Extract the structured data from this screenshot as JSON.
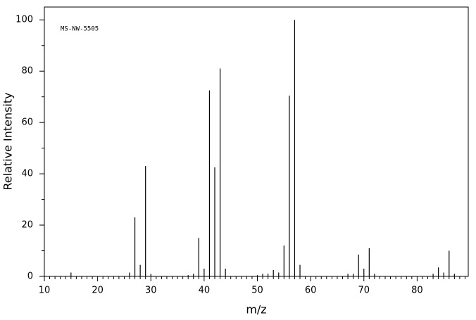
{
  "chart_data": {
    "type": "stem",
    "color": "#000000",
    "annotation": "MS-NW-5505",
    "xlabel": "m/z",
    "ylabel": "Relative Intensity",
    "x": [
      15,
      26,
      27,
      28,
      29,
      30,
      37,
      38,
      39,
      40,
      41,
      42,
      43,
      44,
      50,
      51,
      52,
      53,
      54,
      55,
      56,
      57,
      58,
      67,
      68,
      69,
      70,
      71,
      72,
      83,
      84,
      85,
      86,
      87
    ],
    "values": [
      1.5,
      1.5,
      23,
      4.5,
      43,
      1,
      0.5,
      1,
      15,
      3,
      72.5,
      42.5,
      81,
      3,
      0.5,
      1,
      1,
      2.5,
      1.5,
      12,
      70.5,
      100,
      4.5,
      1,
      1,
      8.5,
      3,
      11,
      1,
      1,
      3.5,
      1.5,
      10,
      1
    ],
    "xlim": [
      10,
      89.6
    ],
    "ylim": [
      0,
      105
    ],
    "xticks": [
      10,
      20,
      30,
      40,
      50,
      60,
      70,
      80
    ],
    "yticks": [
      0,
      20,
      40,
      60,
      80,
      100
    ],
    "xminorticks": [
      11,
      12,
      13,
      14,
      15,
      16,
      17,
      18,
      19,
      21,
      22,
      23,
      24,
      25,
      26,
      27,
      28,
      29,
      31,
      32,
      33,
      34,
      35,
      36,
      37,
      38,
      39,
      41,
      42,
      43,
      44,
      45,
      46,
      47,
      48,
      49,
      51,
      52,
      53,
      54,
      55,
      56,
      57,
      58,
      59,
      61,
      62,
      63,
      64,
      65,
      66,
      67,
      68,
      69,
      71,
      72,
      73,
      74,
      75,
      76,
      77,
      78,
      79,
      81,
      82,
      83,
      84,
      85,
      86,
      87,
      88,
      89
    ],
    "yminorticks": [
      10,
      30,
      50,
      70,
      90
    ]
  }
}
